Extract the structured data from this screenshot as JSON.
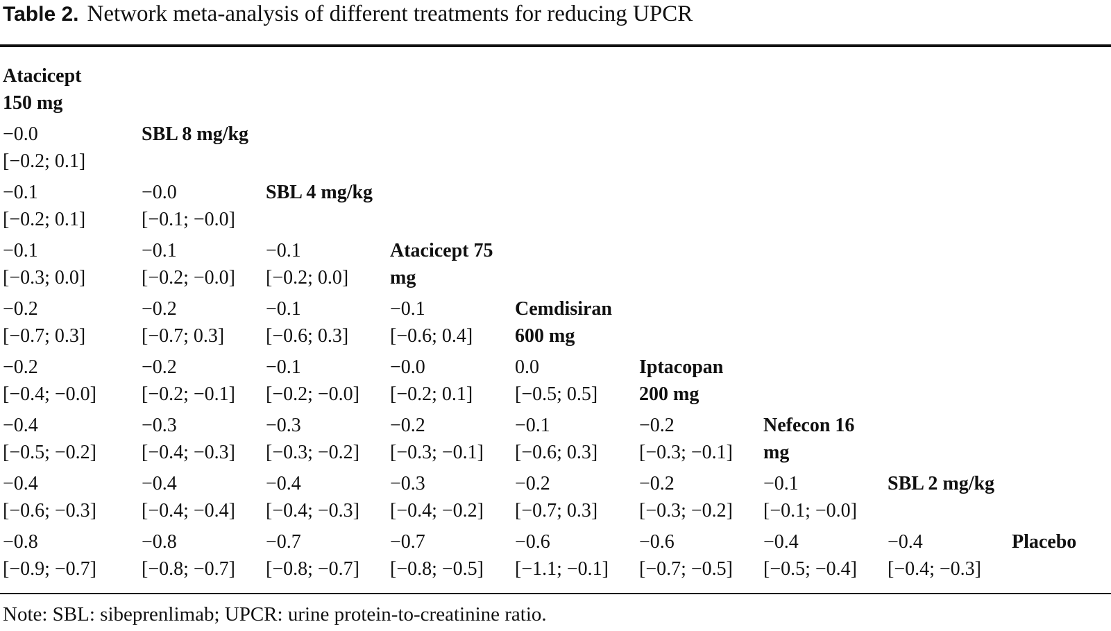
{
  "caption": {
    "label": "Table 2.",
    "text": "Network meta-analysis of different treatments for reducing UPCR"
  },
  "table": {
    "rows": [
      {
        "cells": [],
        "header": [
          "Atacicept",
          "150 mg"
        ]
      },
      {
        "cells": [
          [
            "−0.0",
            "[−0.2; 0.1]"
          ]
        ],
        "header": [
          "SBL 8 mg/kg",
          ""
        ]
      },
      {
        "cells": [
          [
            "−0.1",
            "[−0.2; 0.1]"
          ],
          [
            "−0.0",
            "[−0.1; −0.0]"
          ]
        ],
        "header": [
          "SBL 4 mg/kg",
          ""
        ]
      },
      {
        "cells": [
          [
            "−0.1",
            "[−0.3; 0.0]"
          ],
          [
            "−0.1",
            "[−0.2; −0.0]"
          ],
          [
            "−0.1",
            "[−0.2; 0.0]"
          ]
        ],
        "header": [
          "Atacicept 75",
          "mg"
        ]
      },
      {
        "cells": [
          [
            "−0.2",
            "[−0.7; 0.3]"
          ],
          [
            "−0.2",
            "[−0.7; 0.3]"
          ],
          [
            "−0.1",
            "[−0.6; 0.3]"
          ],
          [
            "−0.1",
            "[−0.6; 0.4]"
          ]
        ],
        "header": [
          "Cemdisiran",
          "600 mg"
        ]
      },
      {
        "cells": [
          [
            "−0.2",
            "[−0.4; −0.0]"
          ],
          [
            "−0.2",
            "[−0.2; −0.1]"
          ],
          [
            "−0.1",
            "[−0.2; −0.0]"
          ],
          [
            "−0.0",
            "[−0.2; 0.1]"
          ],
          [
            "0.0",
            "[−0.5; 0.5]"
          ]
        ],
        "header": [
          "Iptacopan",
          "200 mg"
        ]
      },
      {
        "cells": [
          [
            "−0.4",
            "[−0.5; −0.2]"
          ],
          [
            "−0.3",
            "[−0.4; −0.3]"
          ],
          [
            "−0.3",
            "[−0.3; −0.2]"
          ],
          [
            "−0.2",
            "[−0.3; −0.1]"
          ],
          [
            "−0.1",
            "[−0.6; 0.3]"
          ],
          [
            "−0.2",
            "[−0.3; −0.1]"
          ]
        ],
        "header": [
          "Nefecon 16",
          "mg"
        ]
      },
      {
        "cells": [
          [
            "−0.4",
            "[−0.6; −0.3]"
          ],
          [
            "−0.4",
            "[−0.4; −0.4]"
          ],
          [
            "−0.4",
            "[−0.4; −0.3]"
          ],
          [
            "−0.3",
            "[−0.4; −0.2]"
          ],
          [
            "−0.2",
            "[−0.7; 0.3]"
          ],
          [
            "−0.2",
            "[−0.3; −0.2]"
          ],
          [
            "−0.1",
            "[−0.1; −0.0]"
          ]
        ],
        "header": [
          "SBL 2 mg/kg",
          ""
        ]
      },
      {
        "cells": [
          [
            "−0.8",
            "[−0.9; −0.7]"
          ],
          [
            "−0.8",
            "[−0.8; −0.7]"
          ],
          [
            "−0.7",
            "[−0.8; −0.7]"
          ],
          [
            "−0.7",
            "[−0.8; −0.5]"
          ],
          [
            "−0.6",
            "[−1.1; −0.1]"
          ],
          [
            "−0.6",
            "[−0.7; −0.5]"
          ],
          [
            "−0.4",
            "[−0.5; −0.4]"
          ],
          [
            "−0.4",
            "[−0.4; −0.3]"
          ]
        ],
        "header": [
          "Placebo",
          ""
        ]
      }
    ]
  },
  "note": "Note: SBL: sibeprenlimab; UPCR: urine protein-to-creatinine ratio."
}
